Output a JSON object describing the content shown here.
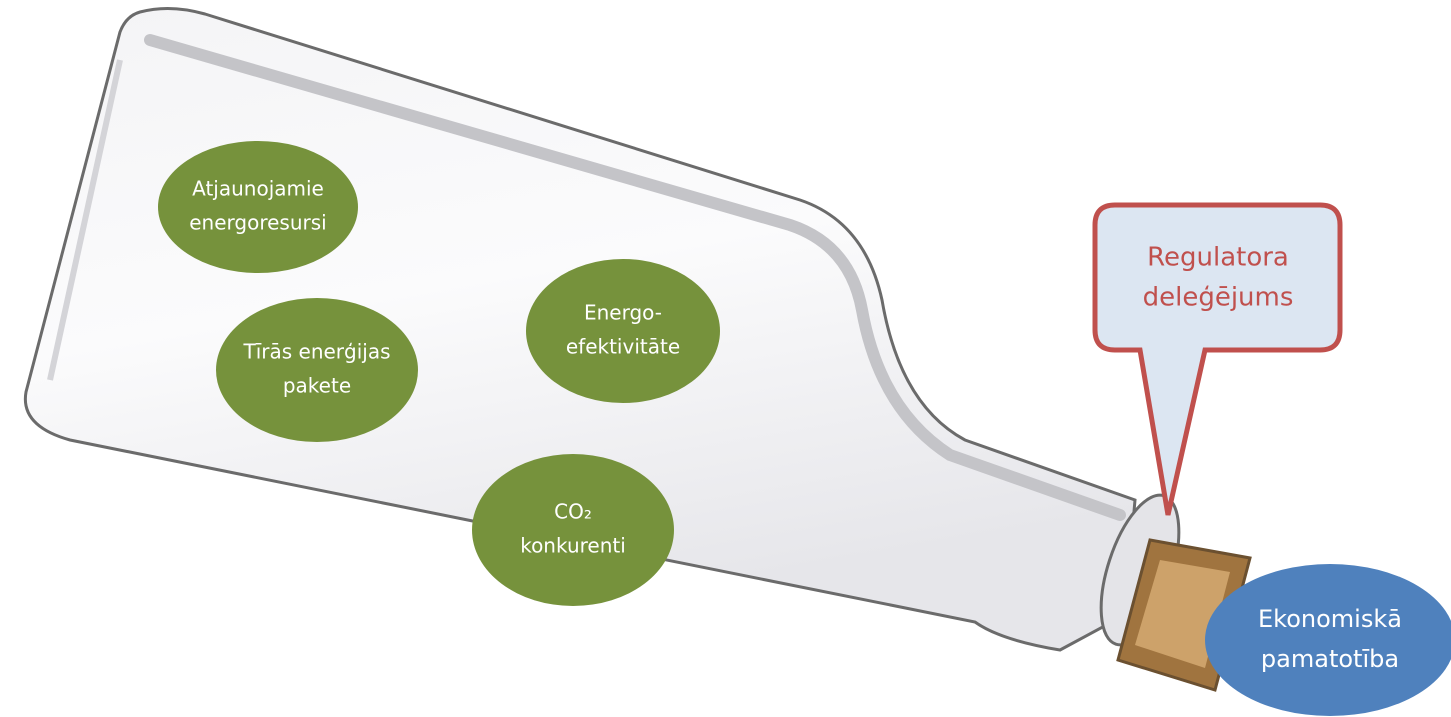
{
  "nodes": [
    {
      "lines": [
        "Atjaunojamie",
        "energoresursi"
      ]
    },
    {
      "lines": [
        "Energo-",
        "efektivitāte"
      ]
    },
    {
      "lines": [
        "Tīrās enerģijas",
        "pakete"
      ]
    },
    {
      "lines": [
        "CO₂",
        "konkurenti"
      ]
    }
  ],
  "callout": {
    "lines": [
      "Regulatora",
      "deleģējums"
    ]
  },
  "cork_label": {
    "lines": [
      "Ekonomiskā",
      "pamatotība"
    ]
  }
}
